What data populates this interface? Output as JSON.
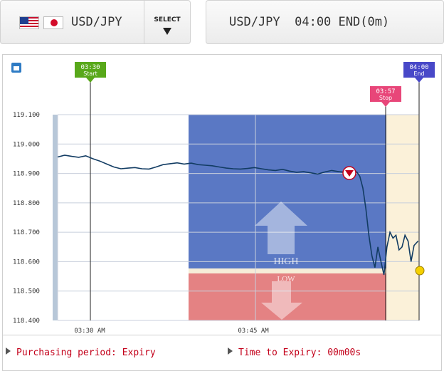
{
  "header": {
    "pair_label": "USD/JPY",
    "select_label": "SELECT",
    "status_label": "USD/JPY  04:00 END(0m)",
    "flags": [
      "us-flag-icon",
      "jp-flag-icon"
    ]
  },
  "chart_data": {
    "type": "line",
    "title": "",
    "xlabel": "",
    "ylabel": "",
    "ylim": [
      118.4,
      119.1
    ],
    "y_ticks": [
      "119.100",
      "119.000",
      "118.900",
      "118.800",
      "118.700",
      "118.600",
      "118.500",
      "118.400"
    ],
    "x_tick_labels": [
      "03:30 AM",
      "03:45 AM"
    ],
    "grid": true,
    "markers": [
      {
        "label_time": "03:30",
        "label_name": "Start",
        "color": "#58a81a"
      },
      {
        "label_time": "03:57",
        "label_name": "Stop",
        "color": "#e84679"
      },
      {
        "label_time": "04:00",
        "label_name": "End",
        "color": "#4848c8"
      }
    ],
    "zones": [
      {
        "label": "HIGH",
        "color": "#5577c4"
      },
      {
        "label": "LOW",
        "color": "#e37f80"
      }
    ],
    "target_rate": 118.585,
    "series": [
      {
        "color": "#123c63",
        "x": [
          0,
          1.4,
          2.8,
          4.2,
          5.6,
          7.0,
          8.4,
          9.8,
          11.2,
          12.6,
          14.0,
          15.4,
          16.8,
          18.2,
          19.6,
          21.0,
          22.4,
          23.8,
          25.2,
          26.6,
          28.0,
          29.4,
          30.8,
          32.2,
          33.6,
          35.0,
          36.4,
          37.8,
          39.2,
          40.6,
          42.0,
          43.4,
          44.8,
          46.2,
          47.6,
          49.0,
          50.4,
          51.8,
          53.2,
          54.6,
          56.0,
          57.4,
          58.8,
          59.6,
          60.2,
          60.8,
          61.4,
          62.0,
          62.6,
          63.2,
          63.8,
          64.4,
          65.0,
          65.6,
          66.2,
          66.8,
          67.4,
          68.0,
          68.6,
          69.2,
          69.8,
          70.4,
          71.0,
          71.8
        ],
        "y": [
          118.956,
          118.962,
          118.958,
          118.955,
          118.96,
          118.95,
          118.942,
          118.932,
          118.922,
          118.916,
          118.918,
          118.92,
          118.916,
          118.915,
          118.922,
          118.93,
          118.933,
          118.936,
          118.932,
          118.935,
          118.93,
          118.928,
          118.926,
          118.922,
          118.918,
          118.916,
          118.915,
          118.917,
          118.92,
          118.916,
          118.912,
          118.91,
          118.914,
          118.908,
          118.904,
          118.906,
          118.902,
          118.898,
          118.905,
          118.91,
          118.906,
          118.904,
          118.907,
          118.905,
          118.89,
          118.85,
          118.78,
          118.69,
          118.62,
          118.58,
          118.65,
          118.6,
          118.555,
          118.65,
          118.7,
          118.68,
          118.69,
          118.64,
          118.65,
          118.69,
          118.67,
          118.6,
          118.655,
          118.67
        ]
      }
    ]
  },
  "footer": {
    "purchasing_label": "Purchasing period: Expiry",
    "expiry_label": "Time to Expiry: 00m00s"
  }
}
